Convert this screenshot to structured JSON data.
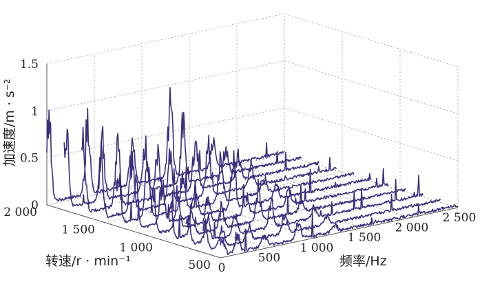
{
  "chart_data": {
    "type": "line",
    "subtype": "3d-waterfall",
    "title": "",
    "xlabel": "频率/Hz",
    "ylabel": "转速/r · min⁻¹",
    "zlabel": "加速度/m · s⁻²",
    "xlim": [
      0,
      2500
    ],
    "ylim": [
      500,
      2000
    ],
    "zlim": [
      0,
      1.5
    ],
    "x_ticks": [
      "0",
      "500",
      "1 000",
      "1 500",
      "2 000",
      "2 500"
    ],
    "y_ticks": [
      "500",
      "1 000",
      "1 500",
      "2 000"
    ],
    "z_ticks": [
      "0",
      "0.5",
      "1",
      "1.5"
    ],
    "grid": true,
    "line_color": "#3b2e7e",
    "series": [
      {
        "speed": 500,
        "peaks": [
          [
            20,
            0.22
          ],
          [
            180,
            0.18
          ],
          [
            460,
            0.15
          ],
          [
            820,
            0.2
          ],
          [
            1200,
            0.08
          ]
        ]
      },
      {
        "speed": 650,
        "peaks": [
          [
            20,
            0.3
          ],
          [
            200,
            0.22
          ],
          [
            480,
            0.18
          ],
          [
            860,
            0.25
          ],
          [
            1300,
            0.1
          ]
        ]
      },
      {
        "speed": 800,
        "peaks": [
          [
            20,
            0.35
          ],
          [
            230,
            0.28
          ],
          [
            520,
            0.22
          ],
          [
            900,
            0.3
          ],
          [
            1350,
            0.12
          ]
        ]
      },
      {
        "speed": 950,
        "peaks": [
          [
            20,
            0.4
          ],
          [
            250,
            0.3
          ],
          [
            560,
            0.25
          ],
          [
            950,
            0.35
          ],
          [
            1400,
            0.15
          ]
        ]
      },
      {
        "speed": 1100,
        "peaks": [
          [
            20,
            0.55
          ],
          [
            280,
            0.45
          ],
          [
            600,
            0.3
          ],
          [
            1000,
            0.25
          ],
          [
            1450,
            0.18
          ]
        ]
      },
      {
        "speed": 1250,
        "peaks": [
          [
            20,
            0.6
          ],
          [
            300,
            0.5
          ],
          [
            650,
            0.4
          ],
          [
            1050,
            0.55
          ],
          [
            1500,
            0.2
          ]
        ]
      },
      {
        "speed": 1400,
        "peaks": [
          [
            20,
            0.7
          ],
          [
            330,
            0.65
          ],
          [
            700,
            0.45
          ],
          [
            1100,
            0.5
          ],
          [
            1550,
            0.22
          ]
        ]
      },
      {
        "speed": 1550,
        "peaks": [
          [
            20,
            0.75
          ],
          [
            350,
            0.6
          ],
          [
            750,
            0.55
          ],
          [
            1150,
            0.6
          ],
          [
            1600,
            0.25
          ]
        ]
      },
      {
        "speed": 1700,
        "peaks": [
          [
            20,
            0.85
          ],
          [
            380,
            0.7
          ],
          [
            800,
            0.5
          ],
          [
            1200,
            0.65
          ],
          [
            1650,
            0.3
          ]
        ]
      },
      {
        "speed": 1850,
        "peaks": [
          [
            20,
            0.95
          ],
          [
            400,
            0.75
          ],
          [
            850,
            0.55
          ],
          [
            1250,
            0.7
          ],
          [
            1700,
            0.3
          ]
        ]
      },
      {
        "speed": 2000,
        "peaks": [
          [
            20,
            1.0
          ],
          [
            430,
            0.9
          ],
          [
            900,
            0.6
          ],
          [
            1300,
            0.85
          ],
          [
            1750,
            0.35
          ]
        ]
      }
    ]
  }
}
